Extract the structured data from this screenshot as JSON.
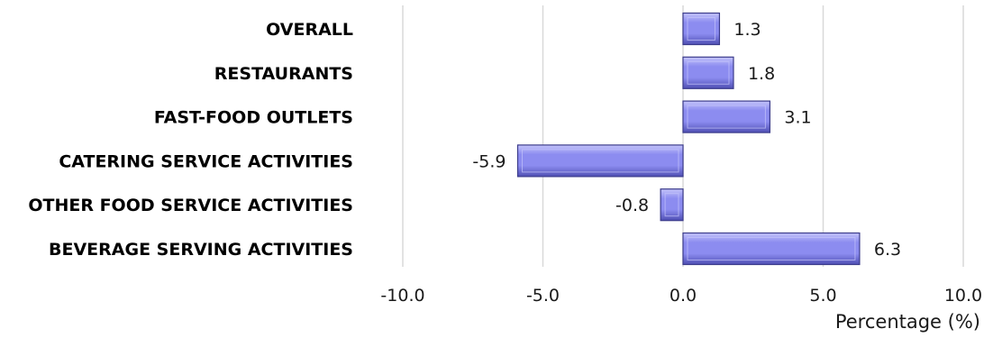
{
  "chart_data": {
    "type": "bar",
    "orientation": "horizontal",
    "categories": [
      "OVERALL",
      "RESTAURANTS",
      "FAST-FOOD OUTLETS",
      "CATERING SERVICE ACTIVITIES",
      "OTHER FOOD SERVICE ACTIVITIES",
      "BEVERAGE SERVING ACTIVITIES"
    ],
    "values": [
      1.3,
      1.8,
      3.1,
      -5.9,
      -0.8,
      6.3
    ],
    "value_labels": [
      "1.3",
      "1.8",
      "3.1",
      "-5.9",
      "-0.8",
      "6.3"
    ],
    "xlabel": "Percentage (%)",
    "xlim": [
      -10.0,
      10.0
    ],
    "xticks": [
      -10.0,
      -5.0,
      0.0,
      5.0,
      10.0
    ],
    "xtick_labels": [
      "-10.0",
      "-5.0",
      "0.0",
      "5.0",
      "10.0"
    ],
    "grid": "vertical",
    "legend": "none",
    "colors": {
      "bar_fill": "#8c8cf0",
      "bar_highlight": "#c4c4fa",
      "bar_shadow": "#4f4fb3",
      "bar_edge": "#3c3c8c",
      "grid": "#d9d9d9"
    }
  }
}
